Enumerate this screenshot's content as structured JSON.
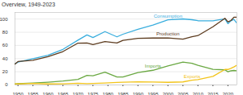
{
  "chart_data": {
    "type": "line",
    "title": "Overview, 1949-2023",
    "x": [
      1949,
      1950,
      1955,
      1960,
      1965,
      1970,
      1973,
      1975,
      1979,
      1983,
      1985,
      1990,
      1995,
      2000,
      2005,
      2008,
      2010,
      2015,
      2019,
      2020,
      2021,
      2022,
      2023
    ],
    "series": [
      {
        "name": "Consumption",
        "color": "#3aaede",
        "values": [
          32,
          34.6,
          40,
          45,
          54,
          68,
          76,
          72,
          81,
          73,
          77,
          84.5,
          91,
          98.8,
          100.2,
          99,
          97.5,
          97.4,
          100.3,
          93,
          97.3,
          99.4,
          93.6
        ]
      },
      {
        "name": "Production",
        "color": "#5c3b1e",
        "values": [
          31.7,
          35.5,
          37.4,
          42.8,
          50.7,
          63.5,
          63.6,
          61.4,
          65.9,
          63.8,
          67.7,
          70.7,
          71.2,
          71.3,
          69.4,
          73.2,
          74.9,
          88.3,
          101.2,
          95.7,
          97.8,
          102.9,
          102.8
        ]
      },
      {
        "name": "Imports",
        "color": "#6aa842",
        "values": [
          1.4,
          1.9,
          2.8,
          4.2,
          5.9,
          8.3,
          14.6,
          14,
          19.5,
          12,
          12.1,
          18.8,
          22.3,
          29,
          34.7,
          32.9,
          29.9,
          23.8,
          22.9,
          20,
          21.4,
          22,
          21.5
        ]
      },
      {
        "name": "Exports",
        "color": "#f2c41a",
        "values": [
          1.6,
          1.5,
          2.3,
          1.5,
          1.8,
          2.6,
          2,
          2.4,
          2.9,
          3.7,
          4.2,
          4.8,
          4.5,
          4,
          4.6,
          7.1,
          8.2,
          13,
          23.5,
          23.5,
          25.3,
          27.4,
          30
        ]
      }
    ],
    "xlim": [
      1949,
      2023
    ],
    "xticks": [
      1950,
      1955,
      1960,
      1965,
      1970,
      1975,
      1980,
      1985,
      1990,
      1995,
      2000,
      2005,
      2010,
      2015,
      2020
    ],
    "ylim": [
      0,
      110
    ],
    "yticks": [
      0,
      20,
      40,
      60,
      80,
      100
    ],
    "grid": true
  }
}
